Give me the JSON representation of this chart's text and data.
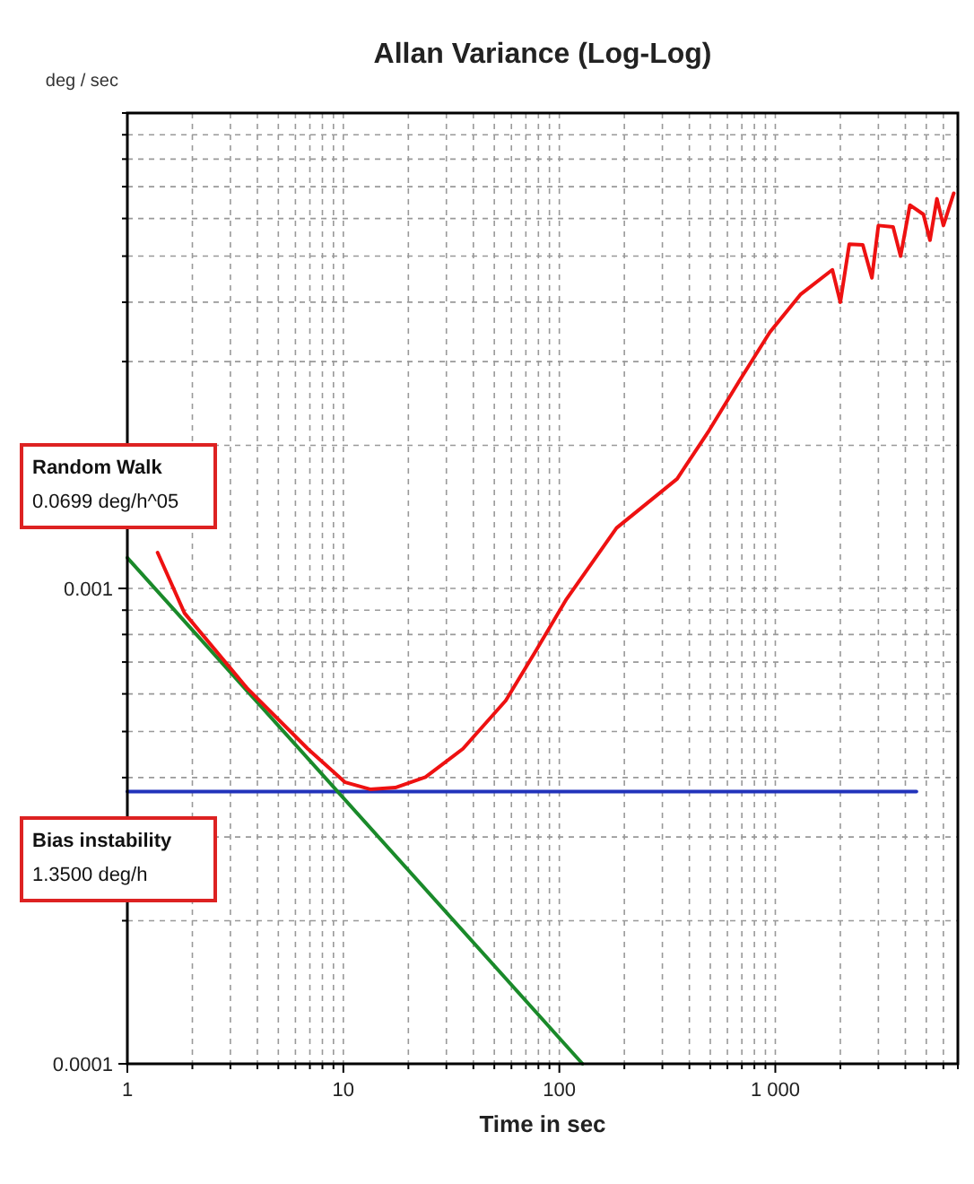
{
  "chart_data": {
    "type": "line",
    "title": "Allan Variance (Log-Log)",
    "xlabel": "Time in sec",
    "ylabel": "deg / sec",
    "log": "xy",
    "grid": true,
    "xlim": [
      1,
      7000
    ],
    "ylim": [
      0.0001,
      0.01
    ],
    "xticks": [
      1,
      {
        "value": 2,
        "label": null
      },
      {
        "value": 3,
        "label": null
      },
      {
        "value": 4,
        "label": null
      },
      {
        "value": 5,
        "label": null
      },
      {
        "value": 6,
        "label": null
      },
      {
        "value": 7,
        "label": null
      },
      {
        "value": 8,
        "label": null
      },
      {
        "value": 9,
        "label": null
      },
      10,
      {
        "value": 20,
        "label": null
      },
      {
        "value": 30,
        "label": null
      },
      {
        "value": 40,
        "label": null
      },
      {
        "value": 50,
        "label": null
      },
      {
        "value": 60,
        "label": null
      },
      {
        "value": 70,
        "label": null
      },
      {
        "value": 80,
        "label": null
      },
      {
        "value": 90,
        "label": null
      },
      100,
      {
        "value": 200,
        "label": null
      },
      {
        "value": 300,
        "label": null
      },
      {
        "value": 400,
        "label": null
      },
      {
        "value": 500,
        "label": null
      },
      {
        "value": 600,
        "label": null
      },
      {
        "value": 700,
        "label": null
      },
      {
        "value": 800,
        "label": null
      },
      {
        "value": 900,
        "label": null
      },
      {
        "value": 1000,
        "label": "1 000"
      },
      {
        "value": 2000,
        "label": null
      },
      {
        "value": 3000,
        "label": null
      },
      {
        "value": 4000,
        "label": null
      },
      {
        "value": 5000,
        "label": null
      },
      {
        "value": 6000,
        "label": null
      },
      {
        "value": 7000,
        "label": null
      }
    ],
    "yticks": [
      0.0001,
      {
        "value": 0.0002,
        "label": null
      },
      {
        "value": 0.0003,
        "label": null
      },
      {
        "value": 0.0004,
        "label": null
      },
      {
        "value": 0.0005,
        "label": null
      },
      {
        "value": 0.0006,
        "label": null
      },
      {
        "value": 0.0007,
        "label": null
      },
      {
        "value": 0.0008,
        "label": null
      },
      {
        "value": 0.0009,
        "label": null
      },
      0.001,
      {
        "value": 0.002,
        "label": null
      },
      {
        "value": 0.003,
        "label": null
      },
      {
        "value": 0.004,
        "label": null
      },
      {
        "value": 0.005,
        "label": null
      },
      {
        "value": 0.006,
        "label": null
      },
      {
        "value": 0.007,
        "label": null
      },
      {
        "value": 0.008,
        "label": null
      },
      {
        "value": 0.009,
        "label": null
      },
      {
        "value": 0.01,
        "label": null
      }
    ],
    "series": [
      {
        "color": "#2233bb",
        "x": [
          1,
          4500
        ],
        "values": [
          0.000374,
          0.000374
        ]
      },
      {
        "color": "#1a8a2a",
        "x": [
          1,
          128
        ],
        "values": [
          0.00116,
          0.0001
        ]
      },
      {
        "color": "#ee1111",
        "x": [
          1.38,
          1.84,
          3.58,
          6.84,
          10.2,
          13.3,
          17.4,
          24,
          35.8,
          56.5,
          78,
          108,
          184,
          351,
          494,
          684,
          944,
          1306,
          1837,
          2000,
          2200,
          2541,
          2800,
          3000,
          3510,
          3800,
          4200,
          4850,
          5200,
          5600,
          6000,
          6700
        ],
        "values": [
          0.00119,
          0.000887,
          0.000617,
          0.00046,
          0.000391,
          0.000378,
          0.000381,
          0.000401,
          0.00046,
          0.000581,
          0.00074,
          0.00095,
          0.00134,
          0.0017,
          0.00215,
          0.00274,
          0.00346,
          0.00415,
          0.00468,
          0.004,
          0.0053,
          0.00528,
          0.0045,
          0.0058,
          0.00576,
          0.005,
          0.0064,
          0.00612,
          0.0054,
          0.0066,
          0.0058,
          0.00678
        ]
      }
    ],
    "annotations": [
      "Random Walk\n0.0699 deg/h^05",
      "Bias instability\n1.3500 deg/h"
    ]
  }
}
